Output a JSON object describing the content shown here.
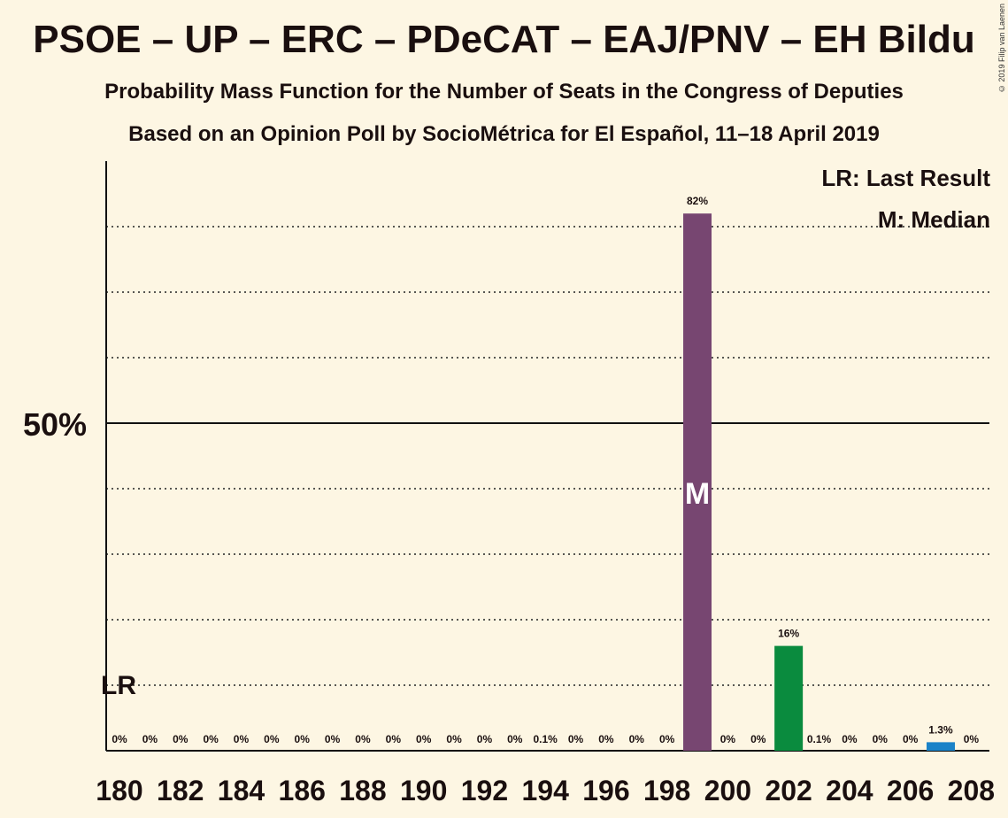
{
  "chart_data": {
    "type": "bar",
    "title": "PSOE – UP – ERC – PDeCAT – EAJ/PNV – EH Bildu",
    "subtitle": "Probability Mass Function for the Number of Seats in the Congress of Deputies",
    "subtitle2": "Based on an Opinion Poll by SocioMétrica for El Español, 11–18 April 2019",
    "copyright": "© 2019 Filip van Laenen",
    "legend": [
      "LR: Last Result",
      "M: Median"
    ],
    "legend_placement": "top-right",
    "y_tick_label": "50%",
    "ylim": [
      0,
      90
    ],
    "x_tick_labels": [
      "180",
      "182",
      "184",
      "186",
      "188",
      "190",
      "192",
      "194",
      "196",
      "198",
      "200",
      "202",
      "204",
      "206",
      "208"
    ],
    "x": [
      180,
      181,
      182,
      183,
      184,
      185,
      186,
      187,
      188,
      189,
      190,
      191,
      192,
      193,
      194,
      195,
      196,
      197,
      198,
      199,
      200,
      201,
      202,
      203,
      204,
      205,
      206,
      207,
      208
    ],
    "values": [
      0,
      0,
      0,
      0,
      0,
      0,
      0,
      0,
      0,
      0,
      0,
      0,
      0,
      0,
      0.1,
      0,
      0,
      0,
      0,
      82,
      0,
      0,
      16,
      0.1,
      0,
      0,
      0,
      1.3,
      0
    ],
    "labels": [
      "0%",
      "0%",
      "0%",
      "0%",
      "0%",
      "0%",
      "0%",
      "0%",
      "0%",
      "0%",
      "0%",
      "0%",
      "0%",
      "0%",
      "0.1%",
      "0%",
      "0%",
      "0%",
      "0%",
      "82%",
      "0%",
      "0%",
      "16%",
      "0.1%",
      "0%",
      "0%",
      "0%",
      "1.3%",
      "0%"
    ],
    "bar_colors": {
      "199": "#774671",
      "202": "#0a8b3e",
      "207": "#1a82c8"
    },
    "median_seat": 199,
    "median_marker": "M",
    "last_result_seat": 180,
    "last_result_marker": "LR",
    "last_result_level": 10,
    "gridlines": [
      10,
      20,
      30,
      40,
      60,
      70,
      80
    ],
    "solid_line": 50
  }
}
